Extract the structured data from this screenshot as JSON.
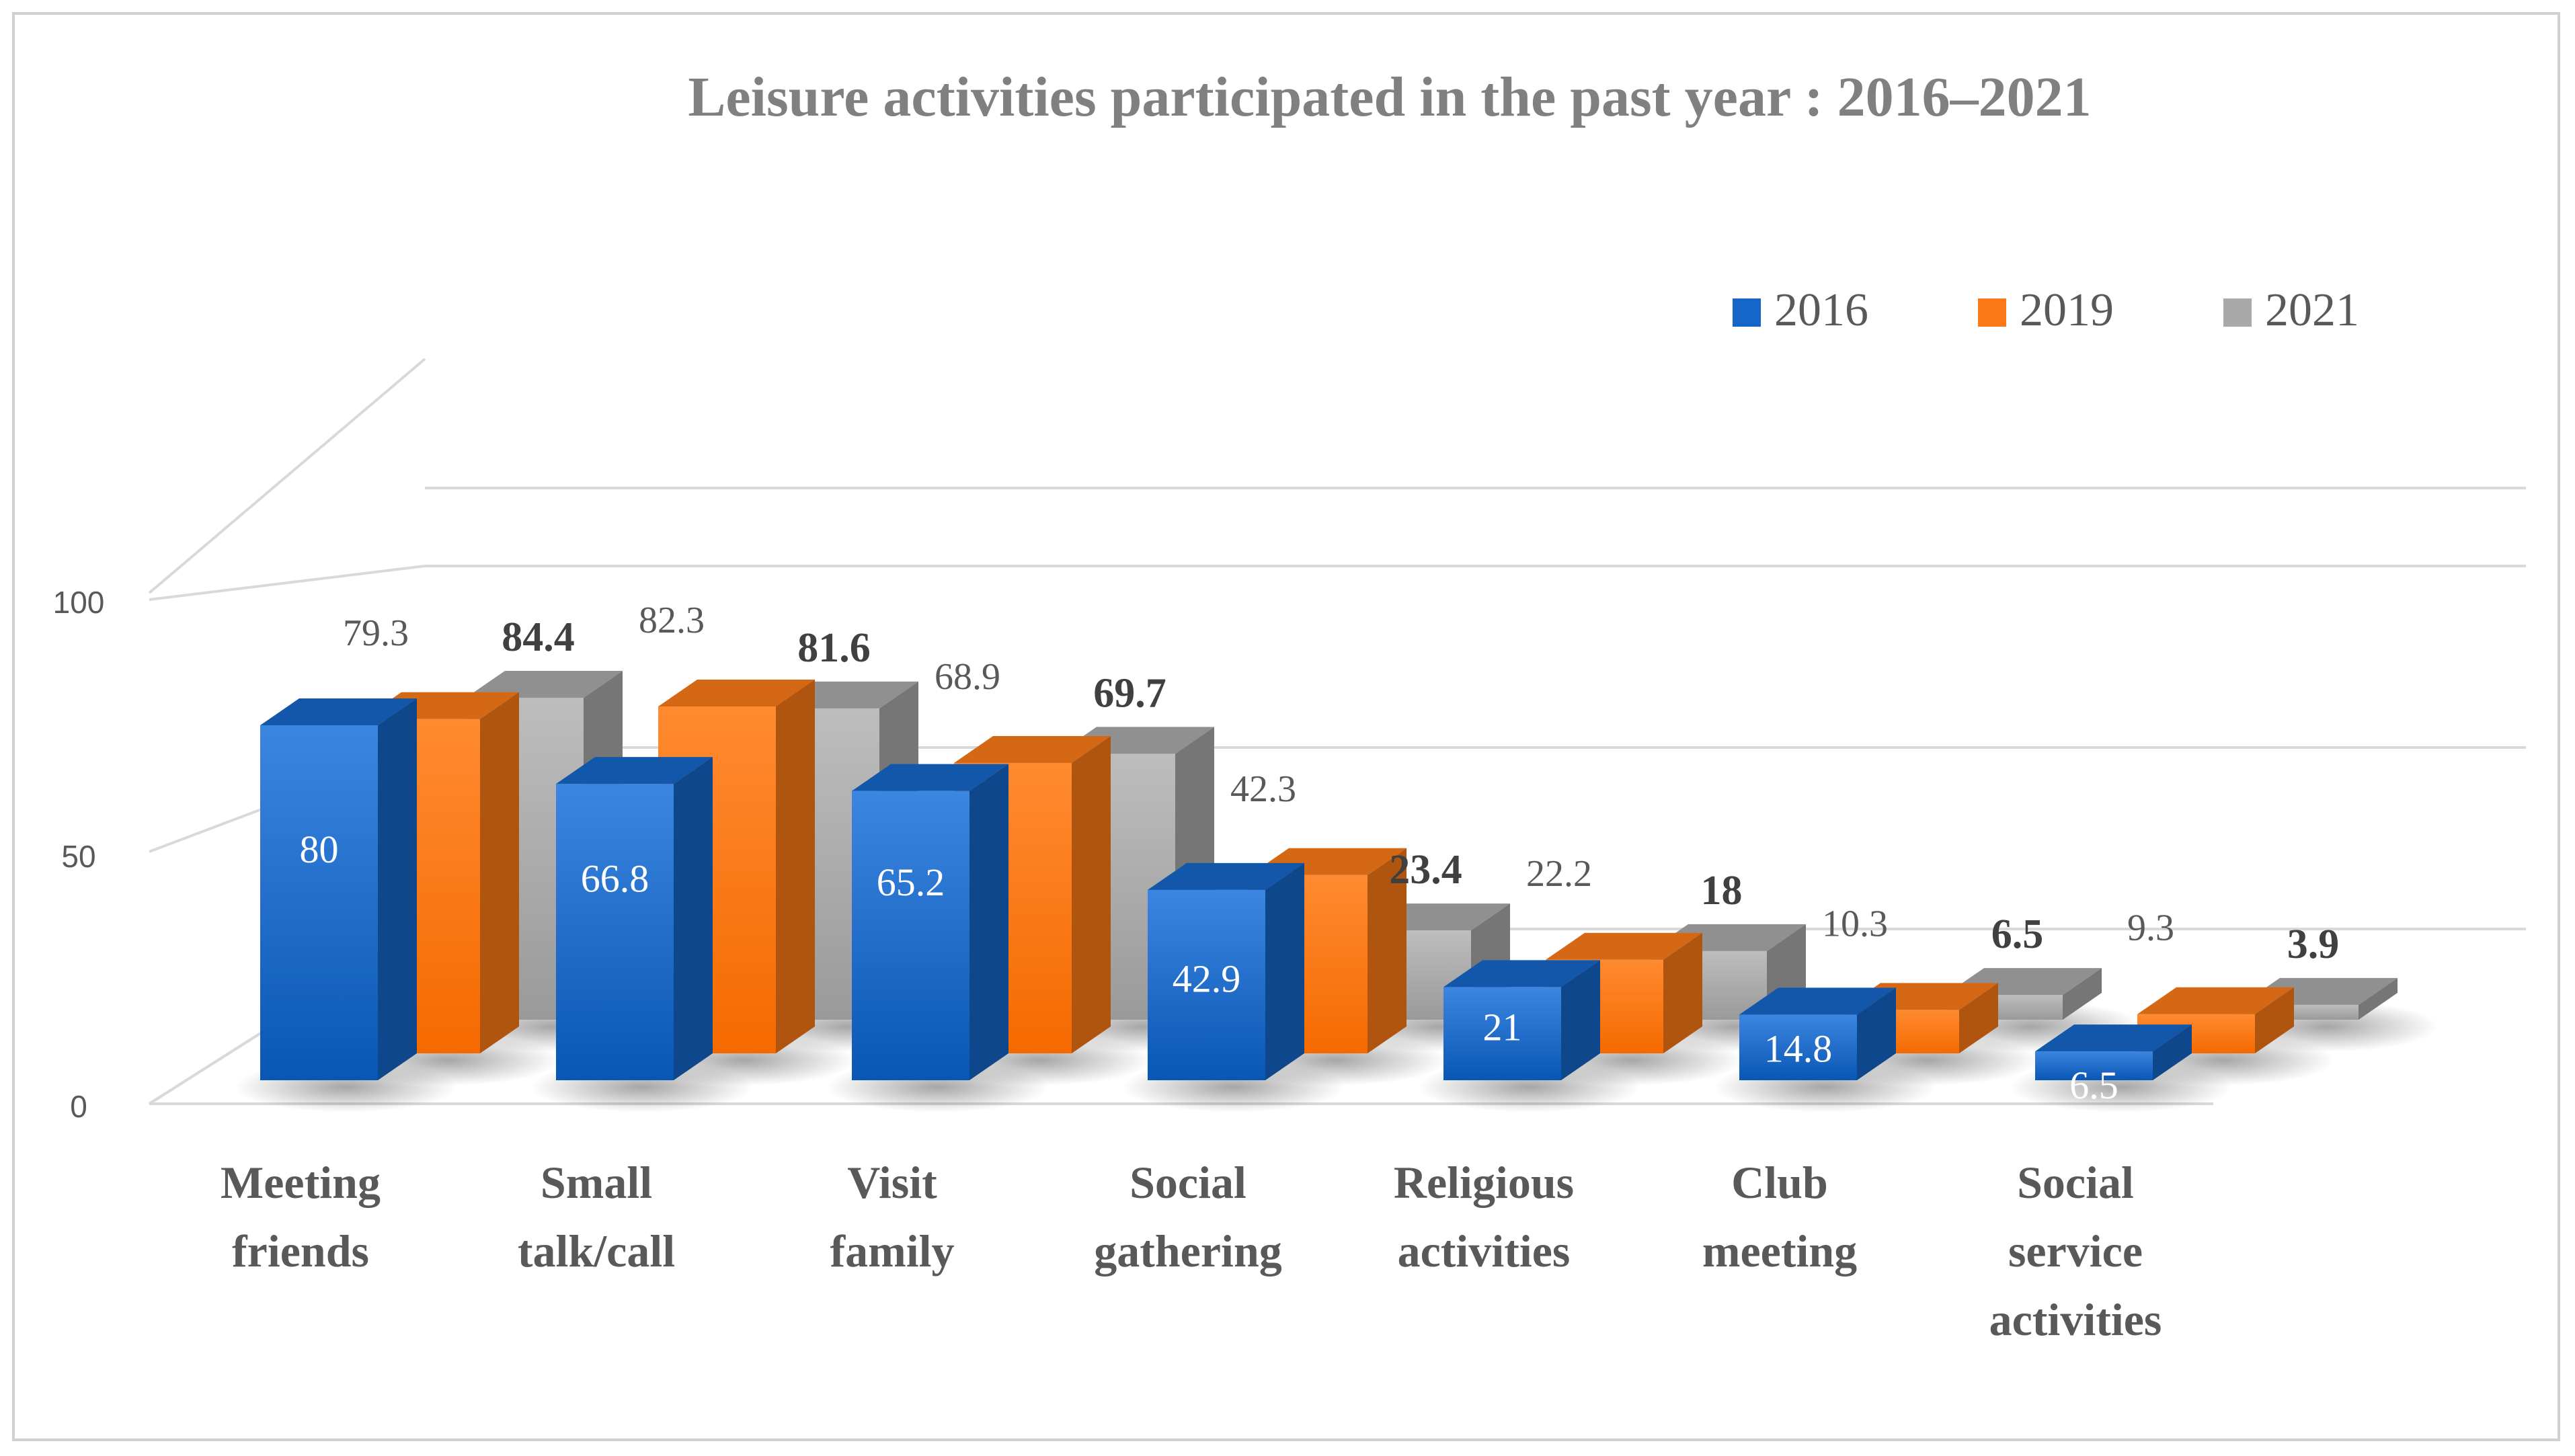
{
  "chart_data": {
    "type": "bar",
    "title": "Leisure activities participated in the past year : 2016–2021",
    "categories": [
      [
        "Meeting",
        "friends"
      ],
      [
        "Small",
        "talk/call"
      ],
      [
        "Visit",
        "family"
      ],
      [
        "Social",
        "gathering"
      ],
      [
        "Religious",
        "activities"
      ],
      [
        "Club",
        "meeting"
      ],
      [
        "Social",
        "service",
        "activities"
      ]
    ],
    "series": [
      {
        "name": "2016",
        "color": "#1566c8",
        "values": [
          80,
          66.8,
          65.2,
          42.9,
          21,
          14.8,
          6.5
        ]
      },
      {
        "name": "2019",
        "color": "#fb7a17",
        "values": [
          79.3,
          82.3,
          68.9,
          42.3,
          22.2,
          10.3,
          9.3
        ]
      },
      {
        "name": "2021",
        "color": "#a9a9a9",
        "values": [
          84.4,
          81.6,
          69.7,
          23.4,
          18,
          6.5,
          3.9
        ]
      }
    ],
    "yticks": [
      "0",
      "50",
      "100"
    ],
    "ylim": [
      0,
      100
    ],
    "grid": true,
    "legend_position": "top-right",
    "style": "3d-clustered-column"
  }
}
